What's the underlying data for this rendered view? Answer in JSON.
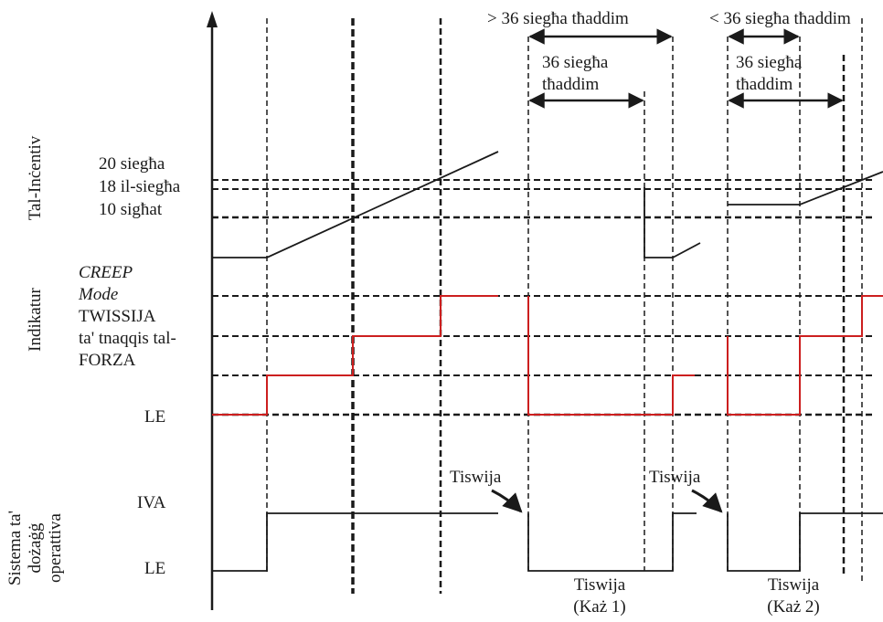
{
  "sections": {
    "incentive": "Tal-Inċentiv",
    "indicator": "Indikatur",
    "dosing_line1": "Sistema ta'",
    "dosing_line2": "dożaġġ",
    "dosing_line3": "operattiva"
  },
  "incentive_levels": {
    "level_20": "20 siegħa",
    "level_18": "18 il-siegħa",
    "level_10": "10 sigħat"
  },
  "indicator_levels": {
    "creep_line1": "CREEP",
    "creep_line2": "Mode",
    "warning_line1": "TWISSIJA",
    "warning_line2": "ta' tnaqqis tal-",
    "warning_line3": "FORZA",
    "off": "LE"
  },
  "dosing_levels": {
    "on": "IVA",
    "off": "LE"
  },
  "durations": {
    "case1_outer": "> 36 siegħa tħaddim",
    "case1_inner_line1": "36 siegħa",
    "case1_inner_line2": "tħaddim",
    "case2_outer": "< 36 siegħa tħaddim",
    "case2_inner_line1": "36 siegħa",
    "case2_inner_line2": "tħaddim"
  },
  "events": {
    "warning_1": "Tiswija",
    "warning_2": "Tiswija",
    "case1_line1": "Tiswija",
    "case1_line2": "(Każ 1)",
    "case2_line1": "Tiswija",
    "case2_line2": "(Każ 2)"
  },
  "colors": {
    "line": "#1a1a1a",
    "indicator_signal": "#cc1f1f"
  }
}
